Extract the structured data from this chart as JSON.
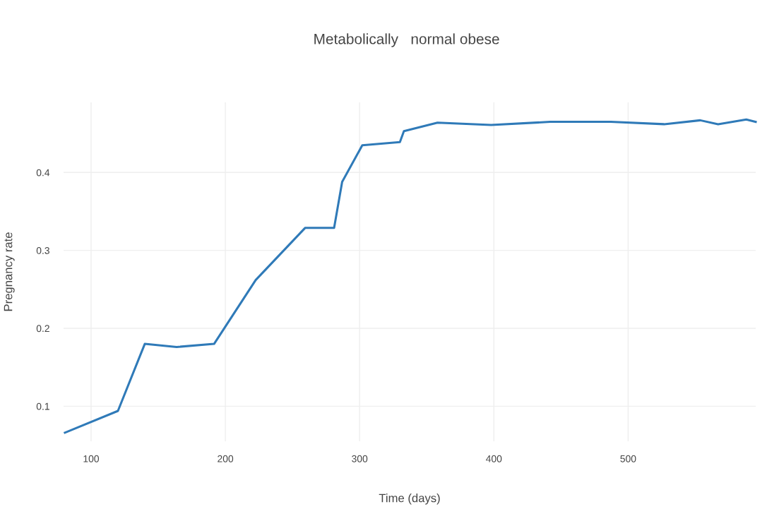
{
  "chart_data": {
    "type": "line",
    "title": "Metabolically   normal obese",
    "xlabel": "Time (days)",
    "ylabel": "Pregnancy rate",
    "x": [
      80.5,
      120,
      140,
      163.7,
      191.6,
      222.6,
      259.5,
      281,
      287,
      302,
      330,
      333,
      358,
      398,
      442,
      487,
      526.8,
      553.7,
      567,
      588,
      595
    ],
    "series": [
      {
        "color": "#2f7ab8",
        "values": [
          0.066,
          0.094,
          0.18,
          0.176,
          0.18,
          0.262,
          0.329,
          0.329,
          0.388,
          0.435,
          0.439,
          0.453,
          0.464,
          0.461,
          0.465,
          0.465,
          0.462,
          0.467,
          0.462,
          0.468,
          0.465
        ]
      }
    ],
    "xlim": [
      79.5,
      595
    ],
    "xticks": [
      100,
      200,
      300,
      400,
      500
    ],
    "ylim": [
      0.055,
      0.49
    ],
    "yticks": [
      0.1,
      0.2,
      0.3,
      0.4
    ],
    "grid": true,
    "marker": "none",
    "line_style": "solid"
  }
}
